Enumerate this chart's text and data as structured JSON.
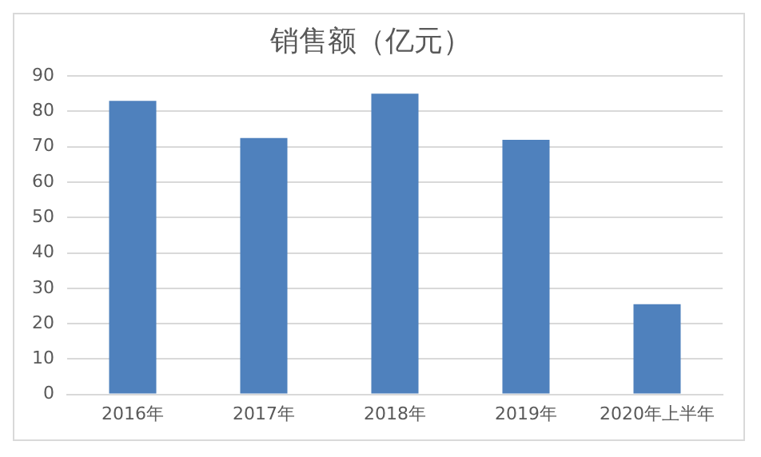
{
  "chart_data": {
    "type": "bar",
    "title": "销售额（亿元）",
    "categories": [
      "2016年",
      "2017年",
      "2018年",
      "2019年",
      "2020年上半年"
    ],
    "values": [
      83,
      72.5,
      85,
      72,
      25.5
    ],
    "color": "#4f81bd",
    "ylim": [
      0,
      90
    ],
    "yticks": [
      0,
      10,
      20,
      30,
      40,
      50,
      60,
      70,
      80,
      90
    ],
    "grid": "y"
  }
}
